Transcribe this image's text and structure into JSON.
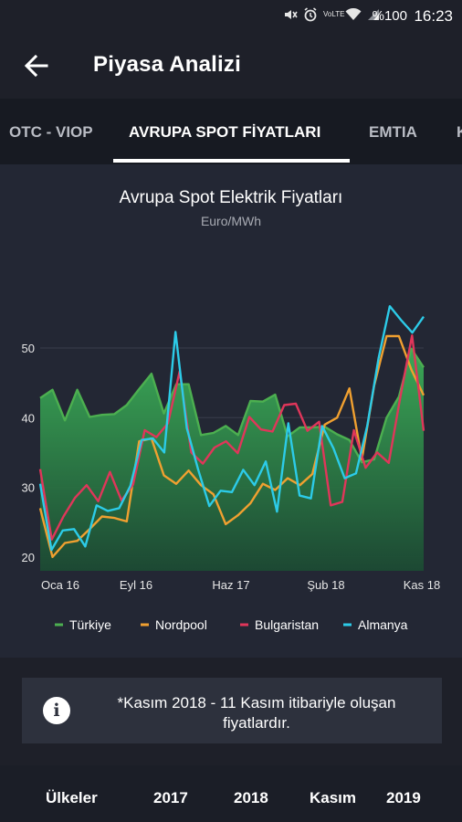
{
  "status_bar": {
    "battery": "%100",
    "time": "16:23",
    "volte": "VoLTE"
  },
  "app_bar": {
    "title": "Piyasa Analizi",
    "back_icon": "arrow-left-icon"
  },
  "tabs": [
    {
      "label": "OTC - VIOP",
      "active": false
    },
    {
      "label": "AVRUPA SPOT FİYATLARI",
      "active": true
    },
    {
      "label": "EMTIA",
      "active": false
    },
    {
      "label": "K",
      "active": false
    }
  ],
  "colors": {
    "turkiye": "#4caf50",
    "nordpool": "#f0a030",
    "bulgaristan": "#e0365a",
    "almanya": "#2ccbe8"
  },
  "chart_data": {
    "type": "line",
    "title": "Avrupa Spot Elektrik Fiyatları",
    "subtitle": "Euro/MWh",
    "ylim": [
      18,
      58
    ],
    "yticks": [
      20,
      30,
      40,
      50
    ],
    "x_tick_labels": [
      "Oca 16",
      "Eyl 16",
      "Haz 17",
      "Şub 18",
      "Kas 18"
    ],
    "grid": true,
    "legend_position": "bottom",
    "series": [
      {
        "name": "Türkiye",
        "color": "#4caf50",
        "fill": true,
        "values": [
          42.8,
          44.0,
          39.6,
          44.0,
          40.1,
          40.4,
          40.5,
          41.8,
          44.1,
          46.3,
          40.6,
          44.8,
          44.8,
          37.5,
          37.8,
          38.8,
          37.5,
          42.4,
          42.3,
          43.3,
          37.3,
          38.6,
          38.6,
          38.7,
          37.6,
          36.8,
          33.6,
          34.0,
          40.0,
          43.0,
          49.9,
          47.2
        ]
      },
      {
        "name": "Nordpool",
        "color": "#f0a030",
        "fill": false,
        "values": [
          27.0,
          20.0,
          22.0,
          22.3,
          24.0,
          25.8,
          25.6,
          25.1,
          36.6,
          37.0,
          31.7,
          30.5,
          32.4,
          30.3,
          29.0,
          24.7,
          26.0,
          27.7,
          30.5,
          29.6,
          31.3,
          30.3,
          31.9,
          39.0,
          40.0,
          44.2,
          34.0,
          44.6,
          51.7,
          51.7,
          46.9,
          43.2
        ]
      },
      {
        "name": "Bulgaristan",
        "color": "#e0365a",
        "fill": false,
        "values": [
          32.6,
          22.5,
          25.8,
          28.5,
          30.3,
          28.0,
          32.2,
          28.1,
          30.4,
          38.2,
          37.2,
          39.2,
          46.6,
          35.0,
          33.4,
          35.7,
          36.6,
          34.9,
          40.1,
          38.3,
          38.0,
          41.8,
          42.0,
          38.1,
          39.4,
          27.4,
          27.9,
          38.2,
          32.8,
          35.0,
          33.5,
          43.0,
          51.8,
          38.1
        ]
      },
      {
        "name": "Almanya",
        "color": "#2ccbe8",
        "fill": false,
        "values": [
          30.5,
          21.0,
          23.8,
          24.0,
          21.5,
          27.4,
          26.6,
          27.0,
          30.2,
          36.8,
          37.0,
          35.0,
          52.3,
          38.5,
          32.6,
          27.3,
          29.5,
          29.3,
          32.5,
          30.3,
          33.7,
          26.5,
          39.2,
          28.8,
          28.4,
          38.8,
          35.6,
          31.3,
          32.0,
          38.8,
          48.5,
          56.0,
          54.0,
          52.2,
          54.5
        ]
      }
    ]
  },
  "info": {
    "icon": "info-icon",
    "text": "*Kasım 2018 - 11 Kasım itibariyle oluşan fiyatlardır."
  },
  "table_header": {
    "columns": [
      "Ülkeler",
      "2017",
      "2018",
      "Kasım",
      "2019"
    ]
  }
}
